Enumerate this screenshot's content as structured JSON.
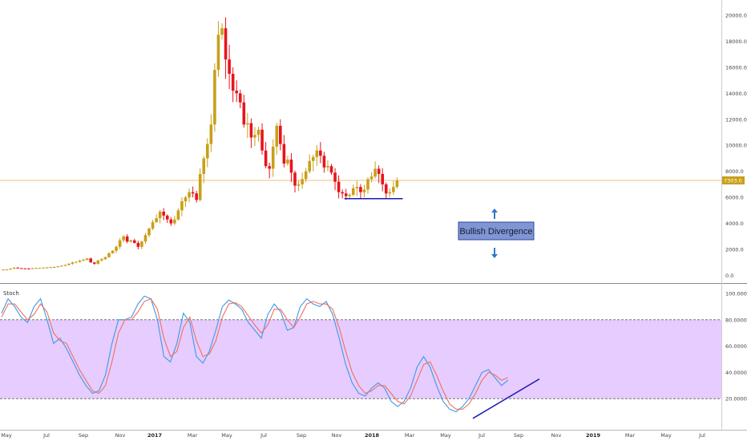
{
  "chart_data": [
    {
      "type": "candlestick",
      "title": "",
      "ylim": [
        -400,
        20800
      ],
      "y_ticks": [
        "20000.0",
        "18000.0",
        "16000.0",
        "14000.0",
        "12000.0",
        "10000.0",
        "8000.0",
        "6000.0",
        "4000.0",
        "2000.0",
        "0.0"
      ],
      "y_tick_values": [
        20000,
        18000,
        16000,
        14000,
        12000,
        10000,
        8000,
        6000,
        4000,
        2000,
        0
      ],
      "last_price_label": "7303.0",
      "last_price": 7303,
      "x_ticks": [
        "May",
        "Jul",
        "Sep",
        "Nov",
        "2017",
        "Mar",
        "May",
        "Jul",
        "Sep",
        "Nov",
        "2018",
        "Mar",
        "May",
        "Jul",
        "Sep",
        "Nov",
        "2019",
        "Mar",
        "May",
        "Jul"
      ],
      "x_tick_bold": [
        "2017",
        "2018",
        "2019"
      ],
      "up_color": "#c8a018",
      "down_color": "#e8141c",
      "price_line_color": "#f0c080",
      "annotation": {
        "text": "Bullish Divergence",
        "support_level": 5900,
        "arrows": [
          "up",
          "down"
        ]
      },
      "close_path": [
        450,
        460,
        520,
        600,
        560,
        540,
        530,
        520,
        560,
        570,
        580,
        600,
        610,
        640,
        650,
        700,
        740,
        800,
        900,
        1000,
        1050,
        1150,
        1200,
        1300,
        1000,
        900,
        1150,
        1250,
        1400,
        1700,
        1900,
        2200,
        2700,
        3000,
        2600,
        2700,
        2500,
        2200,
        2600,
        3100,
        3600,
        4100,
        4400,
        4900,
        4600,
        4300,
        4000,
        4300,
        5000,
        5700,
        6000,
        6400,
        6300,
        5800,
        7800,
        9000,
        10100,
        11600,
        15800,
        18500,
        19000,
        16600,
        15500,
        14200,
        14000,
        13300,
        11600,
        11700,
        10600,
        10800,
        11200,
        9600,
        8400,
        8200,
        9900,
        11500,
        10100,
        8600,
        8900,
        7900,
        6900,
        7000,
        7400,
        8000,
        8800,
        9100,
        9600,
        9200,
        8300,
        8400,
        7900,
        7200,
        6400,
        6300,
        6100,
        6200,
        6700,
        6800,
        6400,
        6600,
        7400,
        7600,
        8200,
        7800,
        7000,
        6300,
        6400,
        6800,
        7303
      ]
    },
    {
      "type": "line",
      "title": "Stoch",
      "ylim": [
        0,
        100
      ],
      "y_ticks": [
        "100.0000",
        "80.0000",
        "60.0000",
        "40.0000",
        "20.0000"
      ],
      "y_tick_values": [
        100,
        80,
        60,
        40,
        20
      ],
      "overbought": 80,
      "oversold": 20,
      "band_color": "#e6ccff",
      "series": [
        {
          "color": "#3c9be6",
          "values": [
            85,
            96,
            90,
            82,
            78,
            90,
            96,
            80,
            62,
            66,
            58,
            48,
            38,
            30,
            24,
            26,
            38,
            62,
            80,
            80,
            82,
            92,
            98,
            96,
            80,
            52,
            48,
            62,
            85,
            78,
            52,
            47,
            56,
            72,
            90,
            95,
            92,
            88,
            78,
            72,
            66,
            84,
            92,
            86,
            72,
            74,
            90,
            96,
            92,
            90,
            94,
            84,
            66,
            46,
            32,
            24,
            22,
            28,
            32,
            28,
            18,
            14,
            18,
            28,
            44,
            52,
            44,
            30,
            18,
            12,
            10,
            14,
            20,
            30,
            40,
            42,
            36,
            30,
            34
          ]
        },
        {
          "color": "#f07060",
          "values": [
            82,
            92,
            92,
            86,
            80,
            84,
            92,
            86,
            70,
            64,
            62,
            52,
            42,
            34,
            26,
            24,
            30,
            48,
            70,
            80,
            80,
            86,
            94,
            96,
            88,
            66,
            52,
            56,
            74,
            82,
            64,
            52,
            54,
            64,
            82,
            92,
            93,
            90,
            83,
            76,
            70,
            76,
            88,
            88,
            80,
            74,
            82,
            92,
            94,
            92,
            92,
            88,
            74,
            56,
            40,
            30,
            24,
            26,
            30,
            30,
            24,
            18,
            16,
            22,
            34,
            46,
            48,
            38,
            26,
            16,
            12,
            12,
            16,
            24,
            34,
            40,
            38,
            34,
            36
          ]
        }
      ],
      "divergence_lines": [
        {
          "name": "price-support",
          "color": "#1a1ab4"
        },
        {
          "name": "stoch-rising",
          "color": "#1a1ab4"
        }
      ]
    }
  ]
}
